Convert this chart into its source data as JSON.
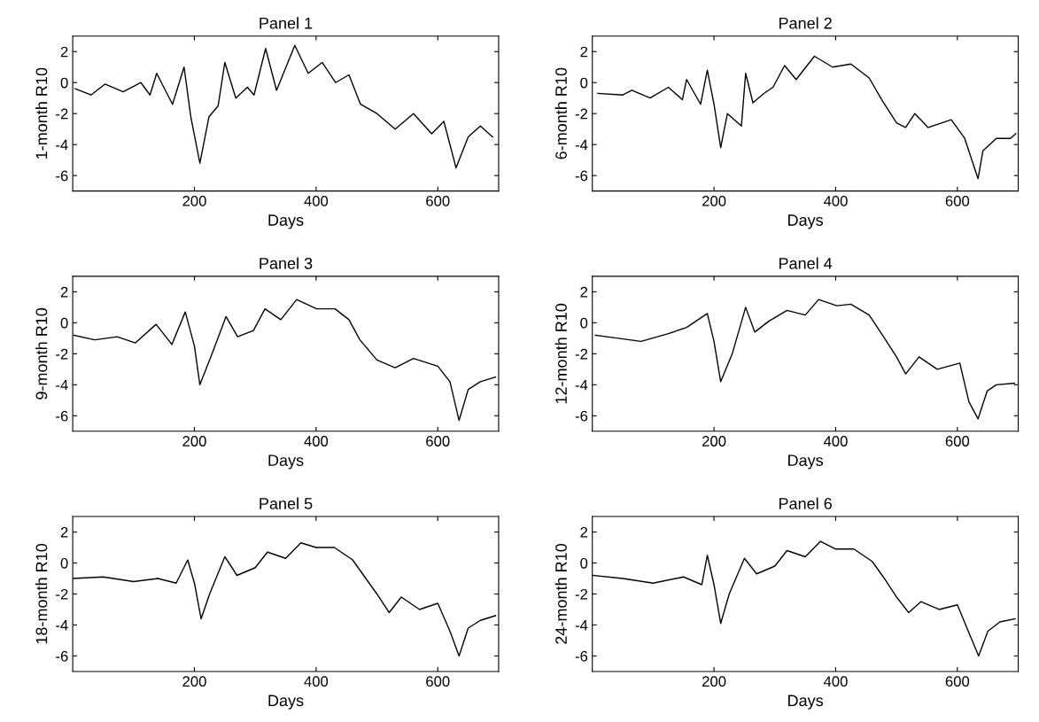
{
  "chart_data": [
    {
      "type": "line",
      "title": "Panel 1",
      "xlabel": "Days",
      "ylabel": "1-month R10",
      "xlim": [
        0,
        700
      ],
      "ylim": [
        -7,
        3
      ],
      "xticks": [
        200,
        400,
        600
      ],
      "yticks": [
        -6,
        -4,
        -2,
        0,
        2
      ],
      "grid": false,
      "legend": false,
      "series": [
        {
          "color": "#000000",
          "x": [
            4,
            30,
            53,
            83,
            112,
            127,
            138,
            164,
            183,
            194,
            209,
            224,
            239,
            250,
            268,
            287,
            298,
            317,
            335,
            365,
            387,
            410,
            432,
            454,
            473,
            500,
            530,
            560,
            590,
            610,
            630,
            650,
            670,
            690
          ],
          "values": [
            -0.4,
            -0.8,
            -0.1,
            -0.6,
            0.0,
            -0.8,
            0.6,
            -1.4,
            1.0,
            -2.2,
            -5.2,
            -2.2,
            -1.5,
            1.3,
            -1.0,
            -0.3,
            -0.8,
            2.2,
            -0.5,
            2.4,
            0.6,
            1.3,
            0.0,
            0.5,
            -1.4,
            -2.0,
            -3.0,
            -2.0,
            -3.3,
            -2.5,
            -5.5,
            -3.5,
            -2.8,
            -3.5
          ]
        }
      ]
    },
    {
      "type": "line",
      "title": "Panel 2",
      "xlabel": "Days",
      "ylabel": "6-month R10",
      "xlim": [
        0,
        700
      ],
      "ylim": [
        -7,
        3
      ],
      "xticks": [
        200,
        400,
        600
      ],
      "yticks": [
        -6,
        -4,
        -2,
        0,
        2
      ],
      "grid": false,
      "legend": false,
      "series": [
        {
          "color": "#000000",
          "x": [
            9,
            50,
            65,
            95,
            125,
            148,
            155,
            178,
            189,
            200,
            211,
            222,
            245,
            252,
            264,
            282,
            297,
            316,
            335,
            365,
            395,
            425,
            455,
            477,
            500,
            515,
            530,
            552,
            590,
            612,
            634,
            642,
            664,
            687,
            696
          ],
          "values": [
            -0.7,
            -0.8,
            -0.5,
            -1.0,
            -0.3,
            -1.1,
            0.2,
            -1.4,
            0.8,
            -1.4,
            -4.2,
            -2.0,
            -2.8,
            0.6,
            -1.3,
            -0.7,
            -0.3,
            1.1,
            0.2,
            1.7,
            1.0,
            1.2,
            0.3,
            -1.2,
            -2.6,
            -2.9,
            -2.0,
            -2.9,
            -2.4,
            -3.6,
            -6.2,
            -4.4,
            -3.6,
            -3.6,
            -3.3
          ]
        }
      ]
    },
    {
      "type": "line",
      "title": "Panel 3",
      "xlabel": "Days",
      "ylabel": "9-month R10",
      "xlim": [
        0,
        700
      ],
      "ylim": [
        -7,
        3
      ],
      "xticks": [
        200,
        400,
        600
      ],
      "yticks": [
        -6,
        -4,
        -2,
        0,
        2
      ],
      "grid": false,
      "legend": false,
      "series": [
        {
          "color": "#000000",
          "x": [
            2,
            36,
            73,
            103,
            137,
            163,
            185,
            200,
            209,
            230,
            252,
            271,
            297,
            316,
            342,
            368,
            401,
            431,
            454,
            472,
            500,
            530,
            560,
            600,
            620,
            635,
            650,
            670,
            695
          ],
          "values": [
            -0.8,
            -1.1,
            -0.9,
            -1.3,
            -0.1,
            -1.4,
            0.7,
            -1.5,
            -4.0,
            -1.9,
            0.4,
            -0.9,
            -0.5,
            0.9,
            0.2,
            1.5,
            0.9,
            0.9,
            0.2,
            -1.1,
            -2.4,
            -2.9,
            -2.3,
            -2.8,
            -3.8,
            -6.3,
            -4.3,
            -3.8,
            -3.5
          ]
        }
      ]
    },
    {
      "type": "line",
      "title": "Panel 4",
      "xlabel": "Days",
      "ylabel": "12-month R10",
      "xlim": [
        0,
        700
      ],
      "ylim": [
        -7,
        3
      ],
      "xticks": [
        200,
        400,
        600
      ],
      "yticks": [
        -6,
        -4,
        -2,
        0,
        2
      ],
      "grid": false,
      "legend": false,
      "series": [
        {
          "color": "#000000",
          "x": [
            5,
            43,
            80,
            125,
            155,
            189,
            200,
            211,
            230,
            252,
            267,
            290,
            320,
            350,
            372,
            402,
            425,
            455,
            477,
            500,
            515,
            537,
            567,
            604,
            619,
            634,
            649,
            664,
            694
          ],
          "values": [
            -0.8,
            -1.0,
            -1.2,
            -0.7,
            -0.3,
            0.6,
            -1.2,
            -3.8,
            -2.0,
            1.0,
            -0.6,
            0.1,
            0.8,
            0.5,
            1.5,
            1.1,
            1.2,
            0.5,
            -0.8,
            -2.2,
            -3.3,
            -2.2,
            -3.0,
            -2.6,
            -5.1,
            -6.2,
            -4.4,
            -4.0,
            -3.9
          ]
        }
      ]
    },
    {
      "type": "line",
      "title": "Panel 5",
      "xlabel": "Days",
      "ylabel": "18-month R10",
      "xlim": [
        0,
        700
      ],
      "ylim": [
        -7,
        3
      ],
      "xticks": [
        200,
        400,
        600
      ],
      "yticks": [
        -6,
        -4,
        -2,
        0,
        2
      ],
      "grid": false,
      "legend": false,
      "series": [
        {
          "color": "#000000",
          "x": [
            0,
            50,
            100,
            140,
            170,
            189,
            200,
            211,
            225,
            250,
            270,
            300,
            320,
            350,
            375,
            400,
            430,
            460,
            480,
            500,
            520,
            540,
            570,
            600,
            620,
            635,
            650,
            670,
            695
          ],
          "values": [
            -1.0,
            -0.9,
            -1.2,
            -1.0,
            -1.3,
            0.2,
            -1.3,
            -3.6,
            -2.0,
            0.4,
            -0.8,
            -0.3,
            0.7,
            0.3,
            1.3,
            1.0,
            1.0,
            0.2,
            -0.9,
            -2.0,
            -3.2,
            -2.2,
            -3.0,
            -2.6,
            -4.4,
            -6.0,
            -4.2,
            -3.7,
            -3.4
          ]
        }
      ]
    },
    {
      "type": "line",
      "title": "Panel 6",
      "xlabel": "Days",
      "ylabel": "24-month R10",
      "xlim": [
        0,
        700
      ],
      "ylim": [
        -7,
        3
      ],
      "xticks": [
        200,
        400,
        600
      ],
      "yticks": [
        -6,
        -4,
        -2,
        0,
        2
      ],
      "grid": false,
      "legend": false,
      "series": [
        {
          "color": "#000000",
          "x": [
            0,
            50,
            100,
            150,
            180,
            189,
            200,
            211,
            225,
            250,
            270,
            300,
            320,
            350,
            375,
            400,
            430,
            460,
            480,
            500,
            520,
            540,
            570,
            600,
            620,
            635,
            650,
            670,
            695
          ],
          "values": [
            -0.8,
            -1.0,
            -1.3,
            -0.9,
            -1.4,
            0.5,
            -1.4,
            -3.9,
            -2.0,
            0.3,
            -0.7,
            -0.2,
            0.8,
            0.4,
            1.4,
            0.9,
            0.9,
            0.1,
            -1.0,
            -2.2,
            -3.2,
            -2.5,
            -3.0,
            -2.7,
            -4.6,
            -6.0,
            -4.4,
            -3.8,
            -3.6
          ]
        }
      ]
    }
  ]
}
